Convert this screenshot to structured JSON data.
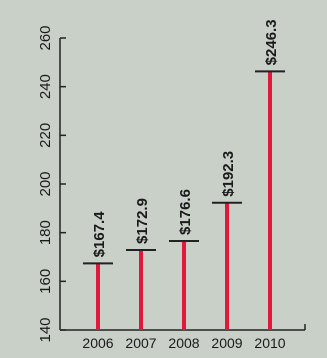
{
  "chart_data": {
    "type": "bar",
    "title": "",
    "xlabel": "",
    "ylabel": "",
    "categories": [
      "2006",
      "2007",
      "2008",
      "2009",
      "2010"
    ],
    "values": [
      167.4,
      172.9,
      176.6,
      192.3,
      246.3
    ],
    "data_labels": [
      "$167.4",
      "$172.9",
      "$176.6",
      "$192.3",
      "$246.3"
    ],
    "ylim": [
      140,
      260
    ],
    "yticks": [
      "140",
      "160",
      "180",
      "200",
      "220",
      "240",
      "260"
    ],
    "grid": false,
    "legend": "none"
  },
  "colors": {
    "background": "#c8d0c8",
    "bar": "#e0183c",
    "axis": "#222222",
    "text": "#1a1a1a"
  }
}
